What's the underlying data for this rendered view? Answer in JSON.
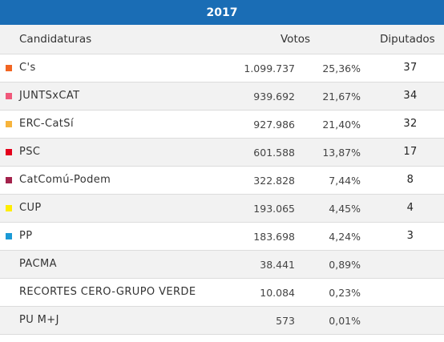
{
  "title": "2017",
  "headers": {
    "candidaturas": "Candidaturas",
    "votos": "Votos",
    "diputados": "Diputados"
  },
  "rows": [
    {
      "party": "C's",
      "votes": "1.099.737",
      "pct": "25,36%",
      "seats": "37",
      "color": "#f26522"
    },
    {
      "party": "JUNTSxCAT",
      "votes": "939.692",
      "pct": "21,67%",
      "seats": "34",
      "color": "#f0587a"
    },
    {
      "party": "ERC-CatSí",
      "votes": "927.986",
      "pct": "21,40%",
      "seats": "32",
      "color": "#f7b43c"
    },
    {
      "party": "PSC",
      "votes": "601.588",
      "pct": "13,87%",
      "seats": "17",
      "color": "#e4001b"
    },
    {
      "party": "CatComú-Podem",
      "votes": "322.828",
      "pct": "7,44%",
      "seats": "8",
      "color": "#a3224c"
    },
    {
      "party": "CUP",
      "votes": "193.065",
      "pct": "4,45%",
      "seats": "4",
      "color": "#ffed00"
    },
    {
      "party": "PP",
      "votes": "183.698",
      "pct": "4,24%",
      "seats": "3",
      "color": "#1b9ad6"
    },
    {
      "party": "PACMA",
      "votes": "38.441",
      "pct": "0,89%",
      "seats": "",
      "color": ""
    },
    {
      "party": "RECORTES CERO-GRUPO VERDE",
      "votes": "10.084",
      "pct": "0,23%",
      "seats": "",
      "color": ""
    },
    {
      "party": "PU M+J",
      "votes": "573",
      "pct": "0,01%",
      "seats": "",
      "color": ""
    }
  ]
}
